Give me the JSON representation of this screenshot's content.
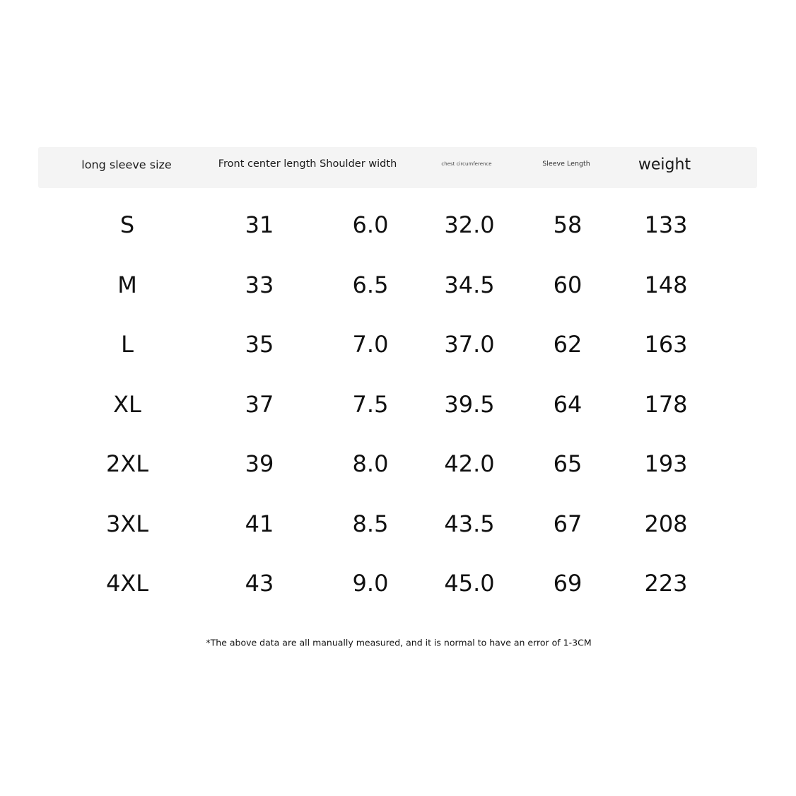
{
  "header": {
    "size": "long sleeve size",
    "front_shoulder": "Front center length Shoulder width",
    "chest": "chest circumference",
    "sleeve": "Sleeve Length",
    "weight": "weight"
  },
  "rows": [
    [
      "S",
      "31",
      "6.0",
      "32.0",
      "58",
      "133"
    ],
    [
      "M",
      "33",
      "6.5",
      "34.5",
      "60",
      "148"
    ],
    [
      "L",
      "35",
      "7.0",
      "37.0",
      "62",
      "163"
    ],
    [
      "XL",
      "37",
      "7.5",
      "39.5",
      "64",
      "178"
    ],
    [
      "2XL",
      "39",
      "8.0",
      "42.0",
      "65",
      "193"
    ],
    [
      "3XL",
      "41",
      "8.5",
      "43.5",
      "67",
      "208"
    ],
    [
      "4XL",
      "43",
      "9.0",
      "45.0",
      "69",
      "223"
    ]
  ],
  "footnote": "*The above data are all manually measured, and it is normal to have an error of 1-3CM",
  "colors": {
    "header_bg": "#f4f4f4",
    "text": "#111111"
  }
}
